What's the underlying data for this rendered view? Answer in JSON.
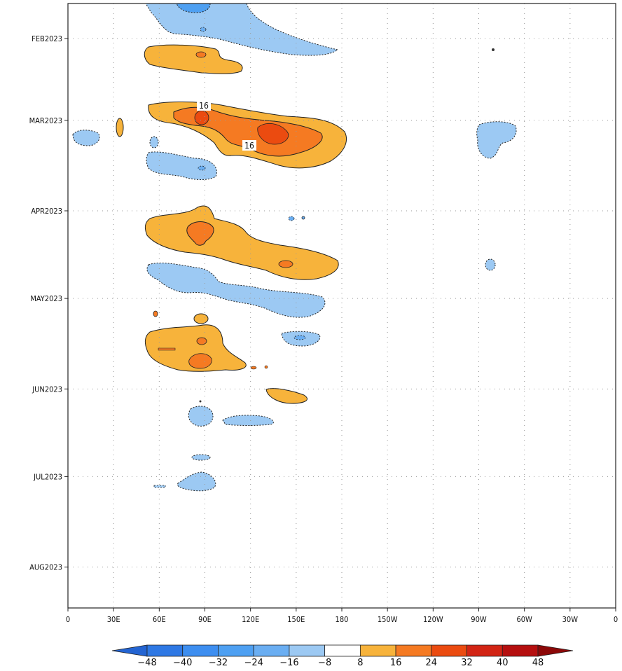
{
  "chart_data": {
    "type": "heatmap",
    "title": "",
    "xlabel": "",
    "ylabel": "",
    "x_ticks": [
      "0",
      "30E",
      "60E",
      "90E",
      "120E",
      "150E",
      "180",
      "150W",
      "120W",
      "90W",
      "60W",
      "30W",
      "0"
    ],
    "x_values_deg_east": [
      0,
      30,
      60,
      90,
      120,
      150,
      180,
      210,
      240,
      270,
      300,
      330,
      360
    ],
    "y_ticks": [
      "FEB2023",
      "MAR2023",
      "APR2023",
      "MAY2023",
      "JUN2023",
      "JUL2023",
      "AUG2023"
    ],
    "y_range": [
      "2023-01-20",
      "2023-08-15"
    ],
    "grid": true,
    "contour_interval": 8,
    "colorbar": {
      "levels": [
        -48,
        -40,
        -32,
        -24,
        -16,
        -8,
        8,
        16,
        24,
        32,
        40,
        48
      ],
      "labels": [
        "−48",
        "−40",
        "−32",
        "−24",
        "−16",
        "−8",
        "8",
        "16",
        "24",
        "32",
        "40",
        "48"
      ],
      "colors": [
        "#2364d2",
        "#2e78e4",
        "#3d8ef0",
        "#4ea0f2",
        "#6aaef2",
        "#9cc9f3",
        "#ffffff",
        "#f7b33b",
        "#f57a22",
        "#eb4b10",
        "#d22414",
        "#b50f0f",
        "#8c0808"
      ]
    },
    "contour_labels": [
      "16",
      "16"
    ],
    "features": [
      {
        "sign": "negative",
        "max_level": -16,
        "lon": [
          50,
          190
        ],
        "date": [
          "2023-01-20",
          "2023-02-12"
        ]
      },
      {
        "sign": "positive",
        "max_level": 16,
        "lon": [
          50,
          115
        ],
        "date": [
          "2023-02-12",
          "2023-02-21"
        ]
      },
      {
        "sign": "positive",
        "max_level": 24,
        "lon": [
          50,
          185
        ],
        "date": [
          "2023-02-28",
          "2023-03-20"
        ]
      },
      {
        "sign": "negative",
        "max_level": -8,
        "lon": [
          5,
          22
        ],
        "date": [
          "2023-03-08",
          "2023-03-15"
        ]
      },
      {
        "sign": "negative",
        "max_level": -8,
        "lon": [
          55,
          100
        ],
        "date": [
          "2023-03-13",
          "2023-03-27"
        ]
      },
      {
        "sign": "negative",
        "max_level": -8,
        "lon": [
          262,
          292
        ],
        "date": [
          "2023-03-06",
          "2023-03-21"
        ]
      },
      {
        "sign": "positive",
        "max_level": 24,
        "lon": [
          50,
          180
        ],
        "date": [
          "2023-04-07",
          "2023-05-02"
        ]
      },
      {
        "sign": "negative",
        "max_level": -8,
        "lon": [
          50,
          170
        ],
        "date": [
          "2023-04-29",
          "2023-05-20"
        ]
      },
      {
        "sign": "positive",
        "max_level": 24,
        "lon": [
          50,
          120
        ],
        "date": [
          "2023-05-21",
          "2023-06-05"
        ]
      },
      {
        "sign": "negative",
        "max_level": -8,
        "lon": [
          140,
          165
        ],
        "date": [
          "2023-05-21",
          "2023-05-27"
        ]
      },
      {
        "sign": "positive",
        "max_level": 8,
        "lon": [
          128,
          160
        ],
        "date": [
          "2023-06-03",
          "2023-06-10"
        ]
      },
      {
        "sign": "negative",
        "max_level": -8,
        "lon": [
          78,
          95
        ],
        "date": [
          "2023-06-10",
          "2023-06-17"
        ]
      },
      {
        "sign": "negative",
        "max_level": -8,
        "lon": [
          100,
          135
        ],
        "date": [
          "2023-06-13",
          "2023-06-18"
        ]
      },
      {
        "sign": "negative",
        "max_level": -8,
        "lon": [
          80,
          95
        ],
        "date": [
          "2023-06-26",
          "2023-06-30"
        ]
      },
      {
        "sign": "negative",
        "max_level": -8,
        "lon": [
          70,
          98
        ],
        "date": [
          "2023-07-02",
          "2023-07-08"
        ]
      }
    ]
  }
}
